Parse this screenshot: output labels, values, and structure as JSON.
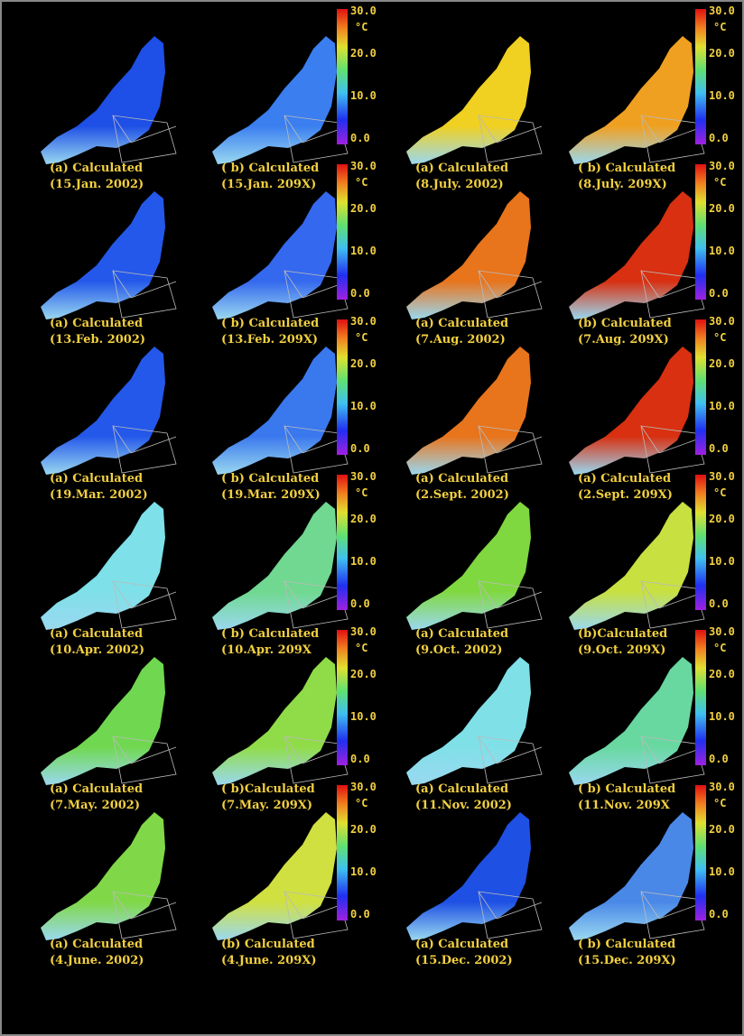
{
  "colorbar": {
    "ticks": [
      "30.0",
      "20.0",
      "10.0",
      "0.0"
    ],
    "unit": "°C"
  },
  "panels": [
    {
      "label": "(a) Calculated",
      "date": "(15.Jan. 2002)",
      "color": "#1e4fe6"
    },
    {
      "label": "( b) Calculated",
      "date": "(15.Jan. 209X)",
      "color": "#3a7ef0"
    },
    {
      "label": "(a) Calculated",
      "date": "(8.July. 2002)",
      "color": "#f0d020"
    },
    {
      "label": "( b) Calculated",
      "date": "(8.July. 209X)",
      "color": "#f0a020"
    },
    {
      "label": "(a) Calculated",
      "date": "(13.Feb. 2002)",
      "color": "#2458ea"
    },
    {
      "label": "( b) Calculated",
      "date": "(13.Feb. 209X)",
      "color": "#3468ee"
    },
    {
      "label": "(a) Calculated",
      "date": "(7.Aug. 2002)",
      "color": "#e8741c"
    },
    {
      "label": "(b) Calculated",
      "date": "(7.Aug. 209X)",
      "color": "#d83010"
    },
    {
      "label": "(a) Calculated",
      "date": "(19.Mar. 2002)",
      "color": "#2458ea"
    },
    {
      "label": "( b) Calculated",
      "date": "(19.Mar. 209X)",
      "color": "#3a78ee"
    },
    {
      "label": "(a) Calculated",
      "date": "(2.Sept. 2002)",
      "color": "#e8741c"
    },
    {
      "label": "(a) Calculated",
      "date": "(2.Sept. 209X)",
      "color": "#d83010"
    },
    {
      "label": "(a) Calculated",
      "date": "(10.Apr. 2002)",
      "color": "#7ee0e8"
    },
    {
      "label": "( b) Calculated",
      "date": "(10.Apr. 209X",
      "color": "#70d890"
    },
    {
      "label": "(a) Calculated",
      "date": "(9.Oct. 2002)",
      "color": "#80d840"
    },
    {
      "label": "(b)Calculated",
      "date": "(9.Oct. 209X)",
      "color": "#c8e040"
    },
    {
      "label": "(a) Calculated",
      "date": "(7.May. 2002)",
      "color": "#70d850"
    },
    {
      "label": "( b)Calculated",
      "date": "(7.May. 209X)",
      "color": "#90dc48"
    },
    {
      "label": "(a) Calculated",
      "date": "(11.Nov. 2002)",
      "color": "#80e0e8"
    },
    {
      "label": "( b) Calculated",
      "date": "(11.Nov. 209X",
      "color": "#68d8a0"
    },
    {
      "label": "(a) Calculated",
      "date": "(4.June. 2002)",
      "color": "#80d848"
    },
    {
      "label": "(b) Calculated",
      "date": "(4.June. 209X)",
      "color": "#d0e040"
    },
    {
      "label": "(a) Calculated",
      "date": "(15.Dec. 2002)",
      "color": "#1e50e4"
    },
    {
      "label": "( b) Calculated",
      "date": "(15.Dec. 209X)",
      "color": "#4a88e8"
    }
  ]
}
